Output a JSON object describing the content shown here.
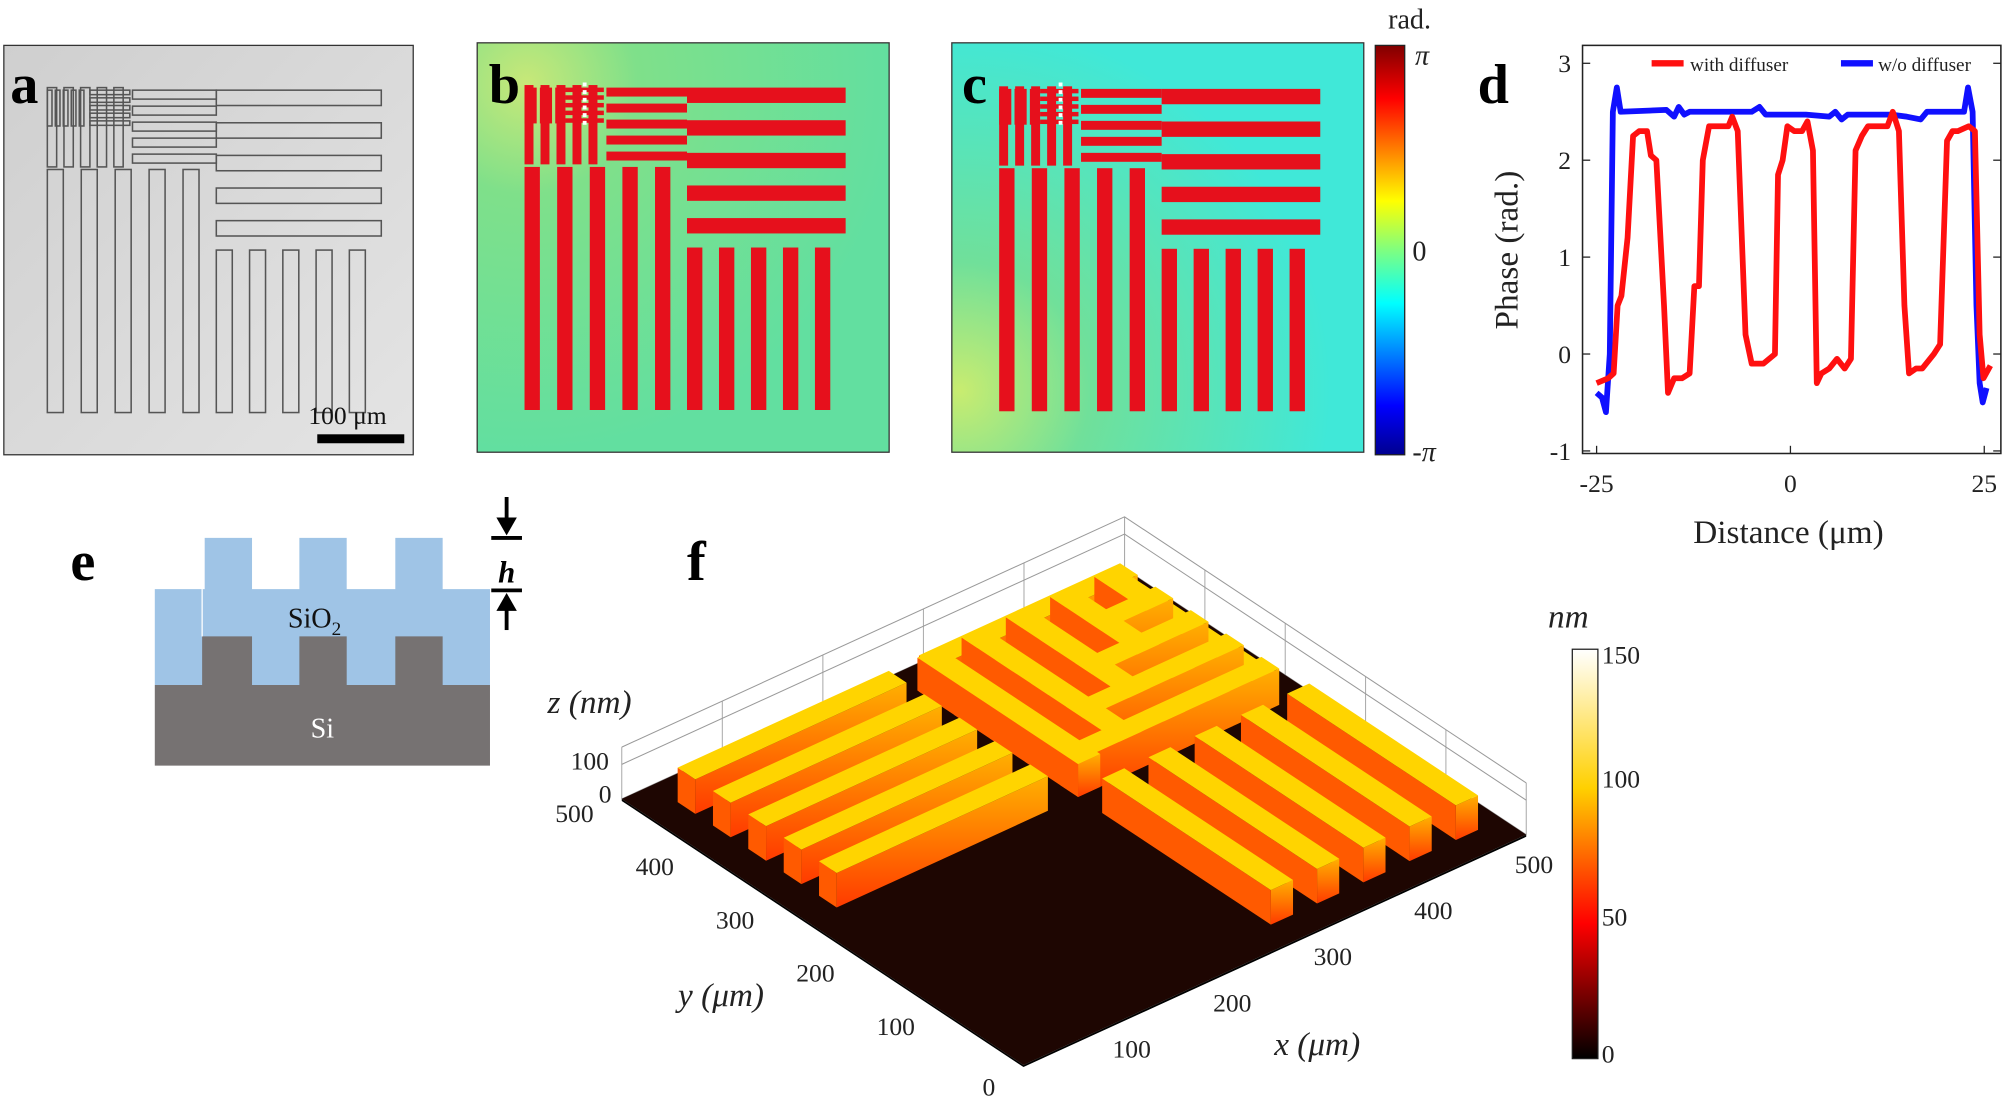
{
  "panel_labels": {
    "a": "a",
    "b": "b",
    "c": "c",
    "d": "d",
    "e": "e",
    "f": "f"
  },
  "panel_a": {
    "scale_bar": "100 μm"
  },
  "phase_colorbar": {
    "unit": "rad.",
    "ticks": [
      "π",
      "0",
      "-π"
    ]
  },
  "panel_e": {
    "oxide": "SiO",
    "oxide_sub": "2",
    "substrate": "Si",
    "height": "h"
  },
  "panel_f": {
    "zlabel": "z (nm)",
    "ylabel": "y (μm)",
    "xlabel": "x (μm)",
    "zticks": [
      "100",
      "0"
    ],
    "yticks": [
      "0",
      "100",
      "200",
      "300",
      "400",
      "500"
    ],
    "xticks": [
      "100",
      "200",
      "300",
      "400",
      "500"
    ],
    "colorbar_unit": "nm",
    "colorbar_ticks": [
      "150",
      "100",
      "50",
      "0"
    ]
  },
  "colors": {
    "red": "#ff1010",
    "blue": "#1010ff",
    "green_bg": "#6fe08c",
    "bar_red": "#e6101c"
  },
  "chart_data": {
    "type": "line",
    "title": "",
    "xlabel": "Distance (μm)",
    "ylabel": "Phase (rad.)",
    "xlim": [
      -26.8,
      27.2
    ],
    "ylim": [
      -1,
      3.15
    ],
    "xticks": [
      "-25",
      "0",
      "25"
    ],
    "yticks": [
      "3",
      "2",
      "1",
      "0",
      "-1"
    ],
    "legend": "top-right",
    "series": [
      {
        "name": "with diffuser",
        "color": "#ff1010",
        "x": [
          -25,
          -23.5,
          -22.8,
          -22.3,
          -21.8,
          -21,
          -20.3,
          -19.5,
          -18.5,
          -18,
          -17.3,
          -16.3,
          -15.8,
          -15,
          -14,
          -13,
          -12.4,
          -11.8,
          -11.3,
          -10.5,
          -9.5,
          -8,
          -7.5,
          -6.8,
          -5.8,
          -5,
          -3.5,
          -2,
          -1.6,
          -1,
          -0.4,
          0.5,
          1.5,
          2.2,
          2.9,
          3.4,
          4,
          5,
          6,
          7,
          7.8,
          8.4,
          9.2,
          10,
          11,
          12.5,
          13.2,
          14,
          14.7,
          15.3,
          16.2,
          17,
          18.5,
          19.3,
          20.2,
          20.9,
          21.6,
          23,
          23.8,
          24.4,
          24.9,
          25.8
        ],
        "y": [
          -0.3,
          -0.25,
          -0.2,
          0.5,
          0.6,
          1.2,
          2.25,
          2.3,
          2.3,
          2.05,
          2.0,
          0.5,
          -0.4,
          -0.25,
          -0.25,
          -0.2,
          0.7,
          0.7,
          2.0,
          2.35,
          2.35,
          2.35,
          2.45,
          2.3,
          0.2,
          -0.1,
          -0.1,
          0.0,
          1.85,
          2.0,
          2.35,
          2.3,
          2.3,
          2.4,
          2.1,
          -0.3,
          -0.2,
          -0.15,
          -0.05,
          -0.15,
          -0.05,
          2.1,
          2.25,
          2.35,
          2.35,
          2.35,
          2.5,
          2.3,
          0.5,
          -0.2,
          -0.15,
          -0.15,
          0.0,
          0.1,
          2.2,
          2.3,
          2.3,
          2.35,
          2.3,
          0.2,
          -0.25,
          -0.12
        ]
      },
      {
        "name": "w/o diffuser",
        "color": "#1010ff",
        "x": [
          -25,
          -24.3,
          -23.8,
          -23.3,
          -22.9,
          -22.4,
          -21.9,
          -16,
          -15,
          -14.4,
          -13.7,
          -13,
          -12,
          -8,
          -5,
          -4,
          -3.2,
          -2.4,
          2,
          5,
          5.8,
          6.6,
          7.4,
          8.2,
          13,
          15,
          16.8,
          17.6,
          18.3,
          22.4,
          22.9,
          23.5,
          24,
          24.4,
          24.8,
          25.3
        ],
        "y": [
          -0.4,
          -0.45,
          -0.6,
          0.0,
          2.5,
          2.75,
          2.5,
          2.52,
          2.45,
          2.55,
          2.47,
          2.5,
          2.5,
          2.5,
          2.5,
          2.55,
          2.47,
          2.47,
          2.47,
          2.45,
          2.5,
          2.42,
          2.47,
          2.47,
          2.47,
          2.45,
          2.42,
          2.5,
          2.5,
          2.5,
          2.75,
          2.5,
          0.5,
          -0.3,
          -0.5,
          -0.35
        ]
      }
    ]
  }
}
